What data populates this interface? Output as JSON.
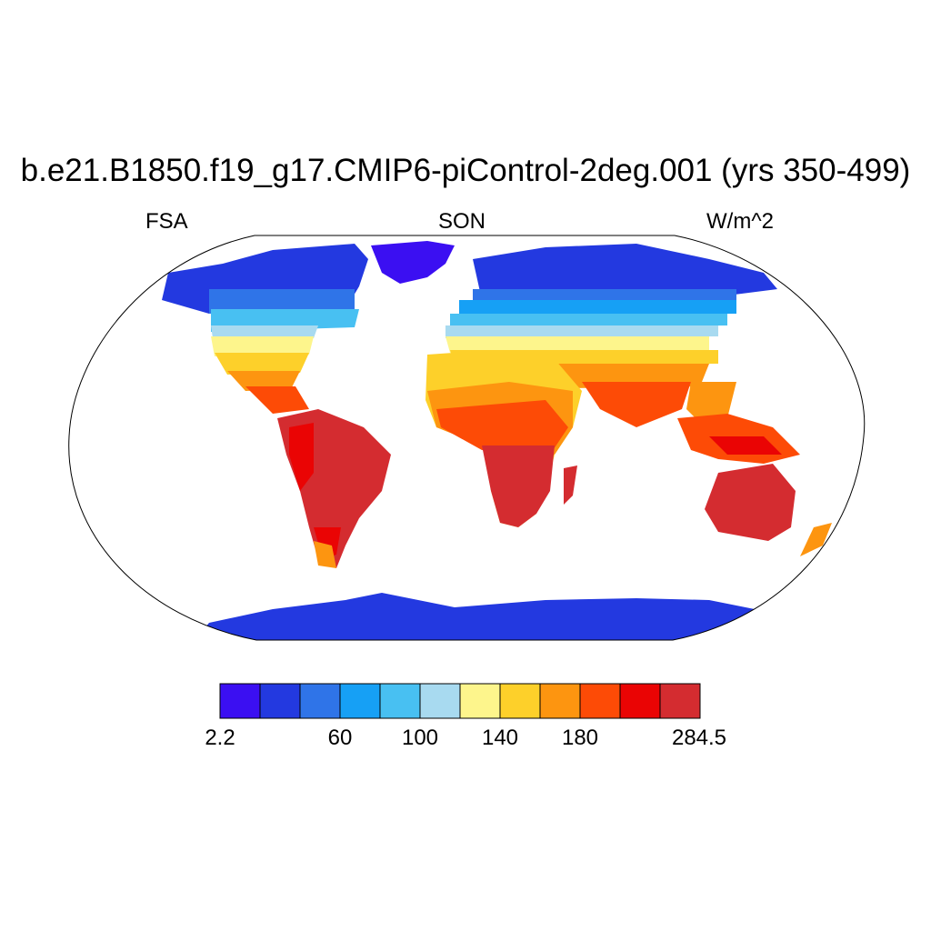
{
  "title": "b.e21.B1850.f19_g17.CMIP6-piControl-2deg.001 (yrs 350-499)",
  "subtitle_left": "FSA",
  "subtitle_center": "SON",
  "subtitle_right": "W/m^2",
  "colorbar": {
    "colors": [
      "#3b0ff2",
      "#2339e0",
      "#2f74e8",
      "#16a0f5",
      "#48c0f2",
      "#a8daf0",
      "#fdf58c",
      "#fdd02a",
      "#fd9510",
      "#fd4b06",
      "#ea0404",
      "#d42c30"
    ],
    "labels": [
      "2.2",
      "60",
      "100",
      "140",
      "180",
      "284.5"
    ]
  }
}
